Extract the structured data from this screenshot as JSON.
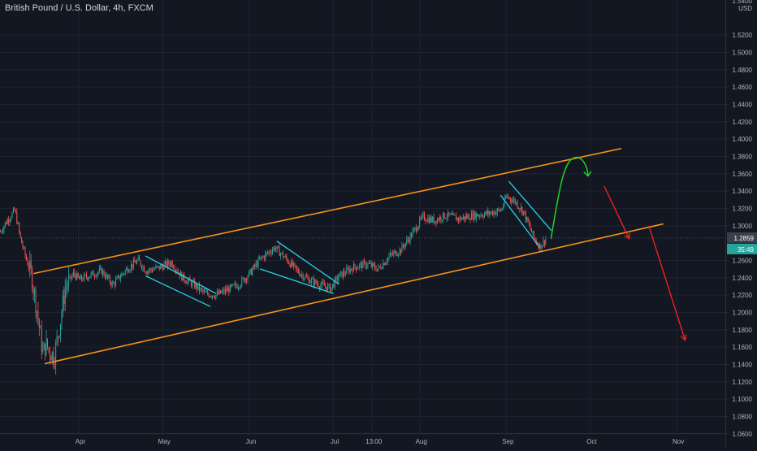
{
  "header": {
    "title": "British Pound / U.S. Dollar, 4h, FXCM"
  },
  "colors": {
    "background": "#131722",
    "grid": "#1f2330",
    "axis_text": "#b2b5be",
    "candle_up": "#26a69a",
    "candle_down": "#ef5350",
    "channel": "#f7931a",
    "flag_lines": "#29d3e6",
    "projection_up": "#22dd22",
    "projection_down": "#ff2020",
    "price_label_bg": "#3a3f4b",
    "countdown_bg": "#26a69a"
  },
  "chart_data": {
    "type": "candlestick",
    "title": "British Pound / U.S. Dollar, 4h, FXCM",
    "y_unit": "USD",
    "y_ticks": [
      "1.5200",
      "1.5000",
      "1.4800",
      "1.4600",
      "1.4400",
      "1.4200",
      "1.4000",
      "1.3800",
      "1.3600",
      "1.3400",
      "1.3200",
      "1.3000",
      "1.2600",
      "1.2400",
      "1.2200",
      "1.2000",
      "1.1800",
      "1.1600",
      "1.1400",
      "1.1200",
      "1.1000",
      "1.0800",
      "1.0600"
    ],
    "y_top_partial": "1.5400",
    "ylim": [
      1.04,
      1.545
    ],
    "x_ticks": [
      "Apr",
      "May",
      "Jun",
      "Jul",
      "13:00",
      "Aug",
      "Sep",
      "Oct",
      "Nov"
    ],
    "current_price": "1.2859",
    "countdown": "35:49",
    "price_path": [
      [
        "2020-03-01",
        1.278
      ],
      [
        "2020-03-06",
        1.305
      ],
      [
        "2020-03-09",
        1.318
      ],
      [
        "2020-03-11",
        1.285
      ],
      [
        "2020-03-13",
        1.262
      ],
      [
        "2020-03-15",
        1.242
      ],
      [
        "2020-03-17",
        1.2
      ],
      [
        "2020-03-19",
        1.152
      ],
      [
        "2020-03-20",
        1.163
      ],
      [
        "2020-03-23",
        1.148
      ],
      [
        "2020-03-25",
        1.185
      ],
      [
        "2020-03-27",
        1.228
      ],
      [
        "2020-03-30",
        1.245
      ],
      [
        "2020-04-01",
        1.238
      ],
      [
        "2020-04-05",
        1.243
      ],
      [
        "2020-04-09",
        1.248
      ],
      [
        "2020-04-13",
        1.232
      ],
      [
        "2020-04-18",
        1.25
      ],
      [
        "2020-04-22",
        1.26
      ],
      [
        "2020-04-25",
        1.248
      ],
      [
        "2020-04-30",
        1.252
      ],
      [
        "2020-05-04",
        1.258
      ],
      [
        "2020-05-08",
        1.24
      ],
      [
        "2020-05-12",
        1.232
      ],
      [
        "2020-05-16",
        1.222
      ],
      [
        "2020-05-20",
        1.22
      ],
      [
        "2020-05-24",
        1.226
      ],
      [
        "2020-05-28",
        1.232
      ],
      [
        "2020-06-01",
        1.245
      ],
      [
        "2020-06-05",
        1.262
      ],
      [
        "2020-06-10",
        1.275
      ],
      [
        "2020-06-14",
        1.262
      ],
      [
        "2020-06-18",
        1.248
      ],
      [
        "2020-06-22",
        1.238
      ],
      [
        "2020-06-26",
        1.232
      ],
      [
        "2020-06-30",
        1.228
      ],
      [
        "2020-07-03",
        1.242
      ],
      [
        "2020-07-08",
        1.252
      ],
      [
        "2020-07-13",
        1.256
      ],
      [
        "2020-07-17",
        1.25
      ],
      [
        "2020-07-21",
        1.265
      ],
      [
        "2020-07-25",
        1.272
      ],
      [
        "2020-07-29",
        1.29
      ],
      [
        "2020-08-02",
        1.31
      ],
      [
        "2020-08-06",
        1.306
      ],
      [
        "2020-08-10",
        1.312
      ],
      [
        "2020-08-15",
        1.308
      ],
      [
        "2020-08-20",
        1.312
      ],
      [
        "2020-08-25",
        1.314
      ],
      [
        "2020-08-30",
        1.318
      ],
      [
        "2020-09-01",
        1.334
      ],
      [
        "2020-09-04",
        1.328
      ],
      [
        "2020-09-07",
        1.316
      ],
      [
        "2020-09-09",
        1.3
      ],
      [
        "2020-09-11",
        1.284
      ],
      [
        "2020-09-13",
        1.276
      ],
      [
        "2020-09-15",
        1.285
      ]
    ],
    "annotations": {
      "channel_upper": [
        [
          "2020-03-16",
          1.245
        ],
        [
          "2020-10-12",
          1.389
        ]
      ],
      "channel_lower": [
        [
          "2020-03-20",
          1.141
        ],
        [
          "2020-10-27",
          1.302
        ]
      ],
      "flags": [
        [
          [
            "2020-04-25",
            1.265
          ],
          [
            "2020-05-20",
            1.222
          ]
        ],
        [
          [
            "2020-04-25",
            1.242
          ],
          [
            "2020-05-18",
            1.207
          ]
        ],
        [
          [
            "2020-06-11",
            1.282
          ],
          [
            "2020-07-03",
            1.233
          ]
        ],
        [
          [
            "2020-06-05",
            1.25
          ],
          [
            "2020-07-01",
            1.222
          ]
        ],
        [
          [
            "2020-09-02",
            1.351
          ],
          [
            "2020-09-17",
            1.295
          ]
        ],
        [
          [
            "2020-08-30",
            1.335
          ],
          [
            "2020-09-13",
            1.275
          ]
        ]
      ],
      "projection_up": [
        [
          "2020-09-17",
          1.285
        ],
        [
          "2020-09-25",
          1.378
        ]
      ],
      "projection_down_1": [
        [
          "2020-10-06",
          1.346
        ],
        [
          "2020-10-15",
          1.285
        ]
      ],
      "projection_down_2": [
        [
          "2020-10-22",
          1.3
        ],
        [
          "2020-11-04",
          1.168
        ]
      ]
    }
  }
}
